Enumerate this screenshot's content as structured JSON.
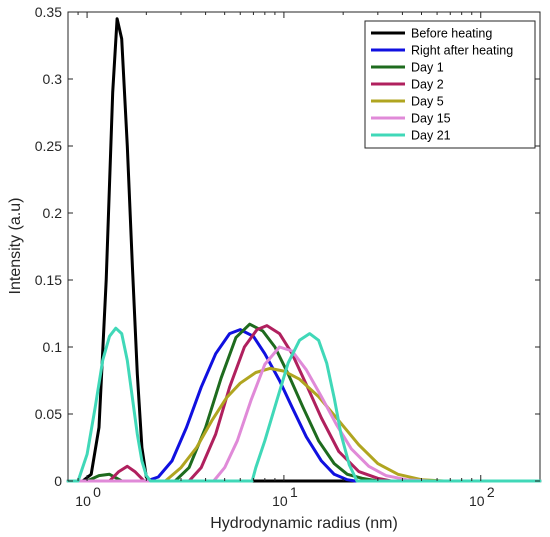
{
  "chart_data": {
    "type": "line",
    "title": "",
    "xlabel": "Hydrodynamic radius (nm)",
    "ylabel": "Intensity (a.u)",
    "xscale": "log",
    "xlim": [
      0.8,
      200
    ],
    "ylim": [
      0,
      0.35
    ],
    "xticks": [
      {
        "value": 1,
        "base": "10",
        "exp": "0"
      },
      {
        "value": 10,
        "base": "10",
        "exp": "1"
      },
      {
        "value": 100,
        "base": "10",
        "exp": "2"
      }
    ],
    "yticks": [
      {
        "value": 0,
        "label": "0"
      },
      {
        "value": 0.05,
        "label": "0.05"
      },
      {
        "value": 0.1,
        "label": "0.1"
      },
      {
        "value": 0.15,
        "label": "0.15"
      },
      {
        "value": 0.2,
        "label": "0.2"
      },
      {
        "value": 0.25,
        "label": "0.25"
      },
      {
        "value": 0.3,
        "label": "0.3"
      },
      {
        "value": 0.35,
        "label": "0.35"
      }
    ],
    "grid": false,
    "legend_position": "top-right",
    "series": [
      {
        "name": "Before heating",
        "color": "#000000",
        "x": [
          0.8,
          0.95,
          1.05,
          1.15,
          1.25,
          1.35,
          1.42,
          1.5,
          1.6,
          1.7,
          1.8,
          1.9,
          2.0,
          2.1,
          200
        ],
        "y": [
          0,
          0,
          0.005,
          0.04,
          0.15,
          0.29,
          0.345,
          0.33,
          0.25,
          0.16,
          0.08,
          0.025,
          0.003,
          0,
          0
        ]
      },
      {
        "name": "Right after heating",
        "color": "#1010e0",
        "x": [
          0.8,
          2.0,
          2.3,
          2.7,
          3.2,
          3.8,
          4.5,
          5.3,
          6.0,
          7.0,
          8.0,
          9.5,
          11.0,
          13.0,
          15.5,
          18.0,
          21.0,
          23.0,
          200
        ],
        "y": [
          0,
          0,
          0.003,
          0.015,
          0.04,
          0.07,
          0.095,
          0.11,
          0.113,
          0.108,
          0.095,
          0.075,
          0.055,
          0.033,
          0.015,
          0.005,
          0.001,
          0,
          0
        ]
      },
      {
        "name": "Day 1",
        "color": "#1e6b1e",
        "x": [
          0.8,
          1.0,
          1.15,
          1.3,
          1.5,
          2.8,
          3.3,
          4.0,
          4.8,
          5.7,
          6.7,
          7.8,
          9.0,
          10.5,
          12.5,
          15.0,
          18.0,
          21.0,
          25.0,
          30.0,
          200
        ],
        "y": [
          0,
          0,
          0.004,
          0.005,
          0,
          0,
          0.01,
          0.04,
          0.077,
          0.107,
          0.117,
          0.112,
          0.1,
          0.08,
          0.055,
          0.03,
          0.013,
          0.005,
          0.002,
          0,
          0
        ]
      },
      {
        "name": "Day 2",
        "color": "#b0205e",
        "x": [
          0.8,
          1.3,
          1.45,
          1.6,
          1.75,
          1.95,
          3.3,
          3.8,
          4.5,
          5.3,
          6.3,
          7.3,
          8.2,
          9.5,
          11.0,
          13.0,
          15.5,
          19.0,
          24.0,
          30.0,
          35.0,
          200
        ],
        "y": [
          0,
          0,
          0.007,
          0.011,
          0.007,
          0,
          0,
          0.01,
          0.035,
          0.07,
          0.1,
          0.113,
          0.116,
          0.11,
          0.095,
          0.072,
          0.047,
          0.022,
          0.007,
          0.002,
          0,
          0
        ]
      },
      {
        "name": "Day 5",
        "color": "#b0a520",
        "x": [
          0.8,
          2.5,
          3.0,
          3.6,
          4.3,
          5.1,
          6.0,
          7.2,
          8.5,
          10.0,
          12.0,
          15.0,
          19.0,
          24.0,
          30.0,
          38.0,
          50.0,
          65.0,
          200
        ],
        "y": [
          0,
          0,
          0.01,
          0.025,
          0.045,
          0.062,
          0.073,
          0.081,
          0.084,
          0.082,
          0.076,
          0.063,
          0.045,
          0.027,
          0.013,
          0.005,
          0.001,
          0,
          0
        ]
      },
      {
        "name": "Day 15",
        "color": "#e08ad8",
        "x": [
          0.8,
          4.4,
          5.0,
          5.8,
          6.8,
          8.0,
          9.5,
          11.0,
          13.0,
          15.5,
          18.5,
          22.0,
          27.0,
          33.0,
          42.0,
          55.0,
          200
        ],
        "y": [
          0,
          0,
          0.01,
          0.03,
          0.06,
          0.087,
          0.1,
          0.097,
          0.083,
          0.063,
          0.042,
          0.024,
          0.011,
          0.004,
          0.001,
          0,
          0
        ]
      },
      {
        "name": "Day 21",
        "color": "#40d8b8",
        "x": [
          0.8,
          0.9,
          1.0,
          1.1,
          1.2,
          1.3,
          1.4,
          1.5,
          1.6,
          1.7,
          1.8,
          1.9,
          2.0,
          2.1,
          6.9,
          7.2,
          8.0,
          9.2,
          10.5,
          12.0,
          13.5,
          15.0,
          16.5,
          18.0,
          19.5,
          21.5,
          23.5,
          200
        ],
        "y": [
          0,
          0,
          0.02,
          0.055,
          0.09,
          0.108,
          0.114,
          0.11,
          0.09,
          0.062,
          0.035,
          0.015,
          0.004,
          0,
          0,
          0.01,
          0.03,
          0.06,
          0.088,
          0.105,
          0.11,
          0.105,
          0.088,
          0.062,
          0.035,
          0.012,
          0,
          0
        ]
      }
    ]
  }
}
